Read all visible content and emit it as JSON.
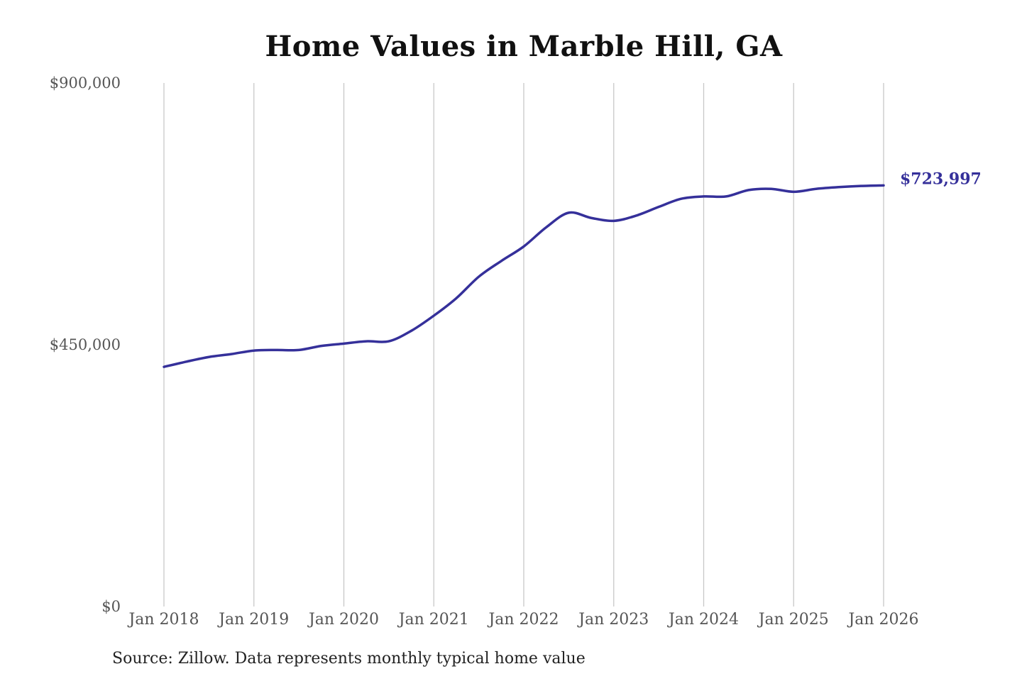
{
  "chart_data": {
    "type": "line",
    "title": "Home Values in Marble Hill, GA",
    "xlabel": "",
    "ylabel": "",
    "ylim": [
      0,
      900000
    ],
    "xlim": [
      "2018-01",
      "2026-01"
    ],
    "y_ticks": [
      {
        "value": 0,
        "label": "$0"
      },
      {
        "value": 450000,
        "label": "$450,000"
      },
      {
        "value": 900000,
        "label": "$900,000"
      }
    ],
    "x_ticks": [
      {
        "value": "2018-01",
        "label": "Jan 2018"
      },
      {
        "value": "2019-01",
        "label": "Jan 2019"
      },
      {
        "value": "2020-01",
        "label": "Jan 2020"
      },
      {
        "value": "2021-01",
        "label": "Jan 2021"
      },
      {
        "value": "2022-01",
        "label": "Jan 2022"
      },
      {
        "value": "2023-01",
        "label": "Jan 2023"
      },
      {
        "value": "2024-01",
        "label": "Jan 2024"
      },
      {
        "value": "2025-01",
        "label": "Jan 2025"
      },
      {
        "value": "2026-01",
        "label": "Jan 2026"
      }
    ],
    "grid": {
      "vertical": true,
      "horizontal": false
    },
    "line_color": "#35309a",
    "end_label": "$723,997",
    "series": [
      {
        "x": [
          "2018-01",
          "2018-04",
          "2018-07",
          "2018-10",
          "2019-01",
          "2019-04",
          "2019-07",
          "2019-10",
          "2020-01",
          "2020-04",
          "2020-07",
          "2020-10",
          "2021-01",
          "2021-04",
          "2021-07",
          "2021-10",
          "2022-01",
          "2022-04",
          "2022-07",
          "2022-10",
          "2023-01",
          "2023-04",
          "2023-07",
          "2023-10",
          "2024-01",
          "2024-04",
          "2024-07",
          "2024-10",
          "2025-01",
          "2025-04",
          "2025-07",
          "2025-10",
          "2026-01"
        ],
        "y": [
          412000,
          421000,
          429000,
          434000,
          440000,
          441000,
          441000,
          448000,
          452000,
          456000,
          456000,
          474000,
          500000,
          530000,
          567000,
          594000,
          619000,
          652000,
          677000,
          668000,
          663000,
          672000,
          687000,
          701000,
          705000,
          705000,
          716000,
          718000,
          713000,
          718000,
          721000,
          723000,
          723997
        ]
      }
    ]
  },
  "source": "Source: Zillow. Data represents monthly typical home value"
}
